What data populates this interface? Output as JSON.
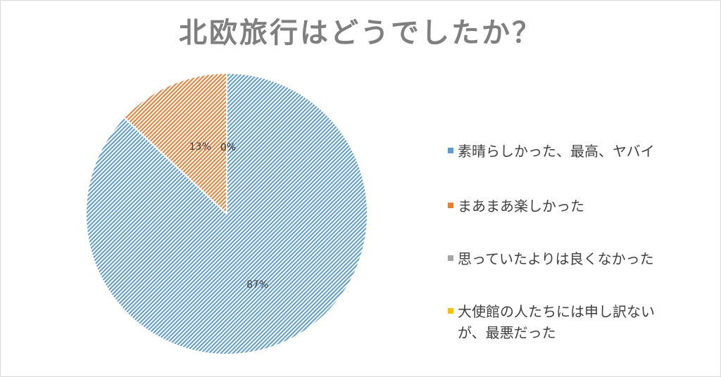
{
  "chart_data": {
    "type": "pie",
    "title": "北欧旅行はどうでしたか？",
    "categories": [
      "素晴らしかった、最高、ヤバイ",
      "まあまあ楽しかった",
      "思っていたよりは良くなかった",
      "大使館の人たちには申し訳ないが、最悪だった"
    ],
    "values": [
      87,
      13,
      0,
      0
    ],
    "data_labels": [
      "87%",
      "13%",
      "0%",
      "0%"
    ],
    "colors": [
      "#5b9bd5",
      "#ed7d31",
      "#a5a5a5",
      "#ffc000"
    ],
    "legend_position": "right",
    "pattern": "diagonal-hatch"
  }
}
